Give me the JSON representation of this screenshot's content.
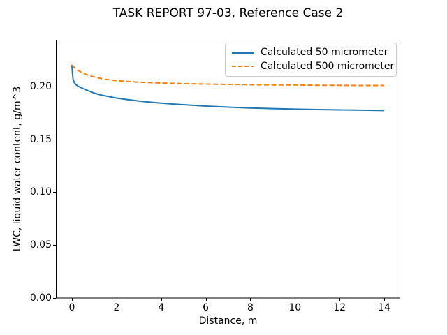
{
  "title": "TASK REPORT 97-03, Reference Case 2",
  "chart_data": {
    "type": "line",
    "title": "TASK REPORT 97-03, Reference Case 2",
    "xlabel": "Distance, m",
    "ylabel": "LWC, liquid water content, g/m^3",
    "xlim": [
      -0.72,
      14.72
    ],
    "ylim": [
      0,
      0.2442
    ],
    "x_ticks": [
      0,
      2,
      4,
      6,
      8,
      10,
      12,
      14
    ],
    "y_ticks": [
      0.0,
      0.05,
      0.1,
      0.15,
      0.2
    ],
    "grid": false,
    "legend_position": "upper right",
    "background_color": "#ffffff",
    "spine_color": "#000000",
    "series": [
      {
        "name": "Calculated 50 micrometer",
        "color": "#1f77b4",
        "style": "solid",
        "x": [
          0,
          0.02,
          0.05,
          0.08,
          0.12,
          0.18,
          0.25,
          0.35,
          0.5,
          0.7,
          1.0,
          1.3,
          1.7,
          2.0,
          2.5,
          3.0,
          3.5,
          4.0,
          4.5,
          5.0,
          6.0,
          7.0,
          8.0,
          9.0,
          10.0,
          11.0,
          12.0,
          13.0,
          14.0
        ],
        "y": [
          0.2205,
          0.214,
          0.207,
          0.2052,
          0.2032,
          0.2018,
          0.2006,
          0.1995,
          0.198,
          0.1963,
          0.1938,
          0.192,
          0.1903,
          0.1891,
          0.1876,
          0.1863,
          0.1852,
          0.1843,
          0.1835,
          0.1828,
          0.1815,
          0.1805,
          0.1797,
          0.1791,
          0.1786,
          0.1782,
          0.1779,
          0.1776,
          0.1773
        ]
      },
      {
        "name": "Calculated 500 micrometer",
        "color": "#ff7f0e",
        "style": "dashed",
        "x": [
          0,
          0.1,
          0.25,
          0.5,
          0.75,
          1.0,
          1.5,
          2.0,
          2.5,
          3.0,
          4.0,
          5.0,
          6.0,
          7.0,
          8.0,
          9.0,
          10.0,
          11.0,
          12.0,
          13.0,
          14.0
        ],
        "y": [
          0.2205,
          0.218,
          0.2155,
          0.2125,
          0.2105,
          0.209,
          0.2067,
          0.2055,
          0.2047,
          0.2041,
          0.2033,
          0.2027,
          0.2023,
          0.202,
          0.2017,
          0.2015,
          0.2014,
          0.2012,
          0.2011,
          0.201,
          0.201
        ]
      }
    ]
  }
}
